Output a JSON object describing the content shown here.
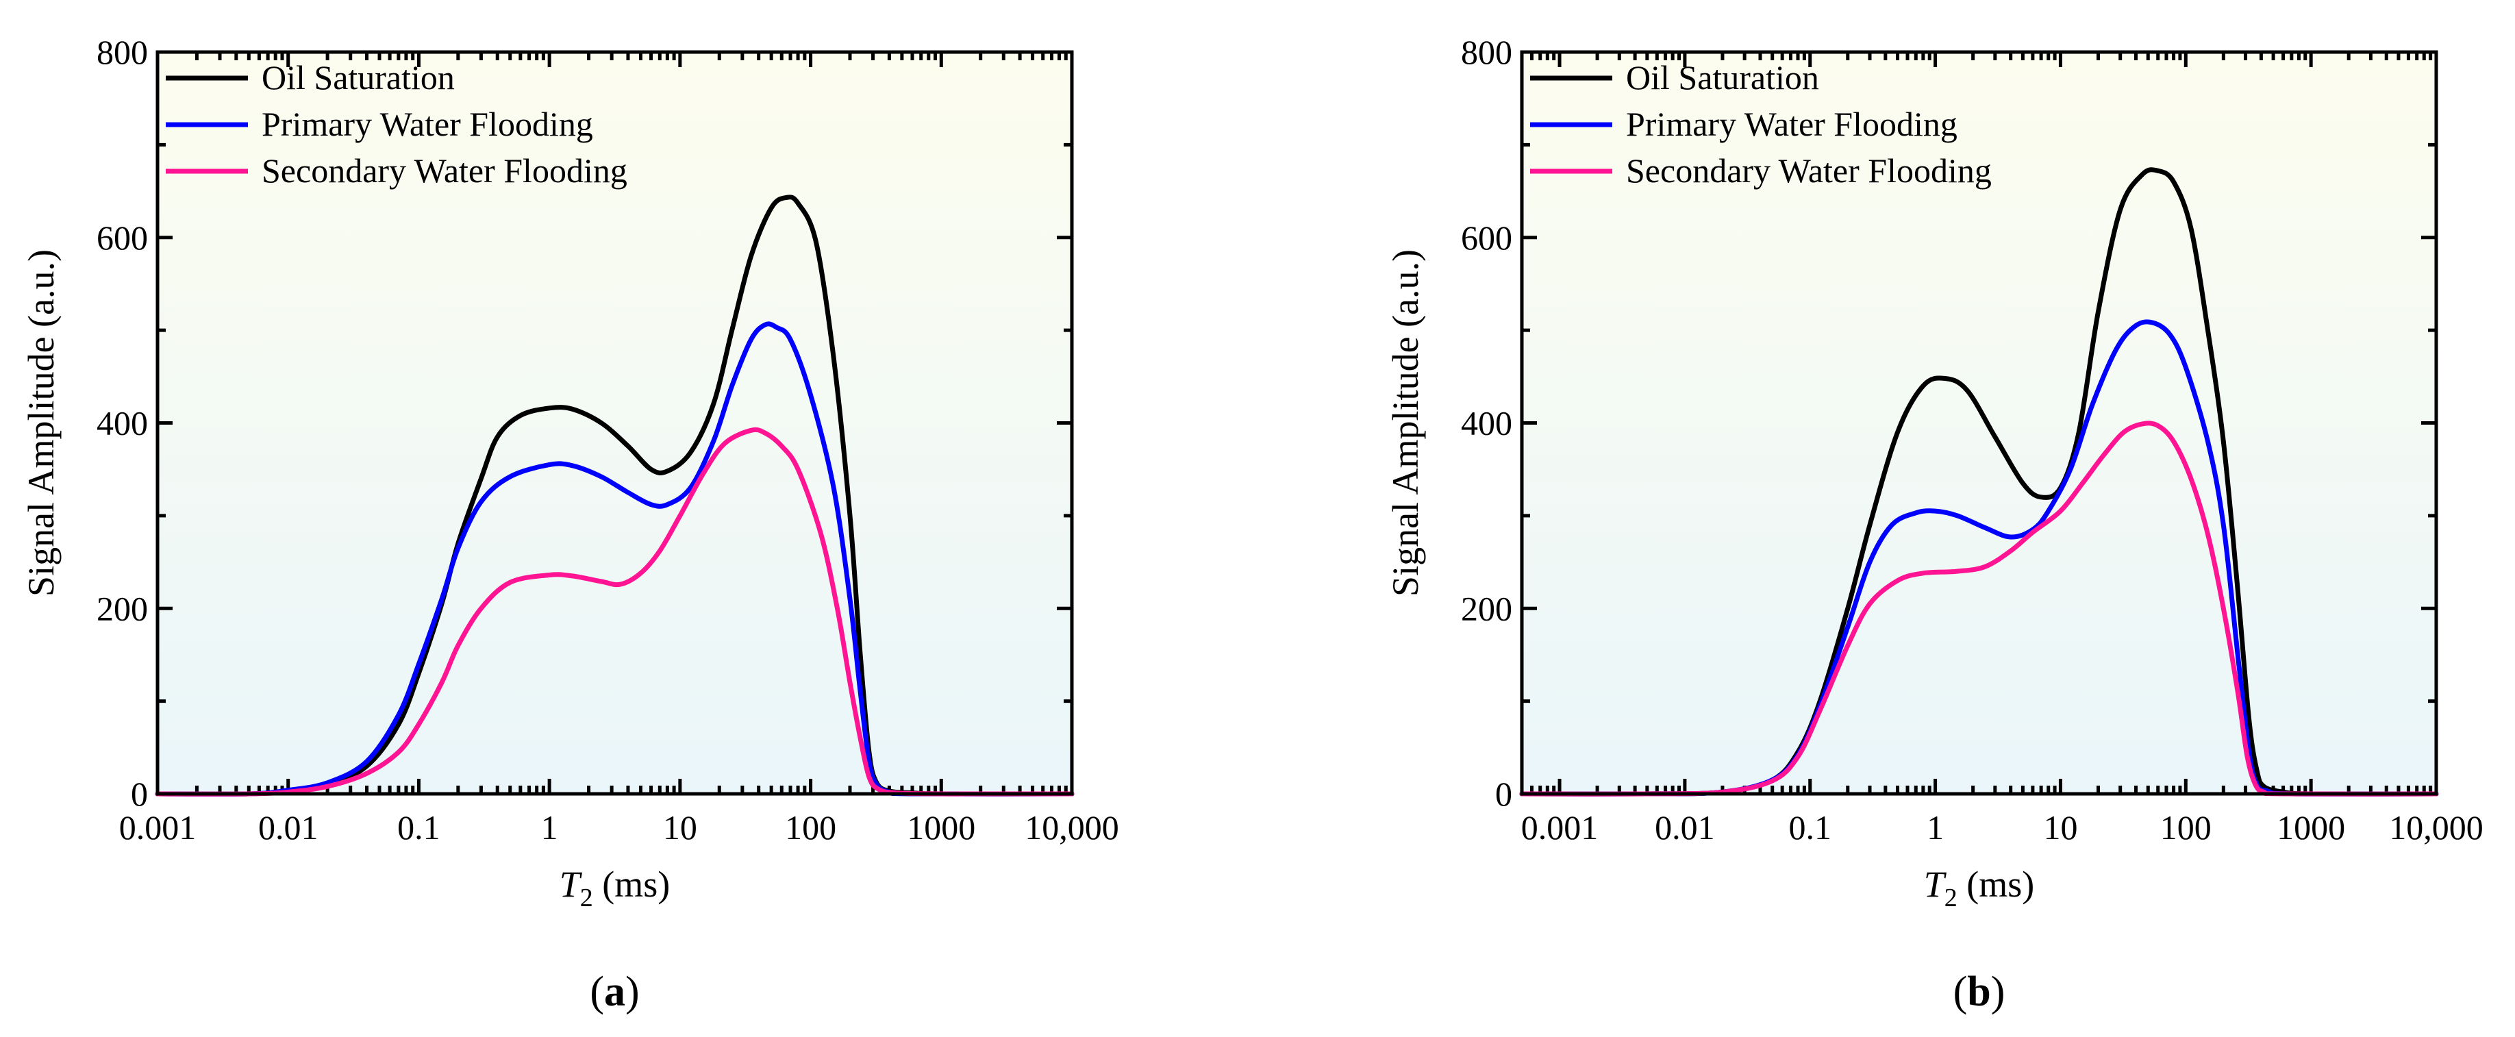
{
  "colors": {
    "oil": "#000000",
    "primary": "#0000ff",
    "secondary": "#ff1493",
    "bg_top": "#fdfdef",
    "bg_bottom": "#eaf6fa"
  },
  "chart_data": [
    {
      "type": "line",
      "panel_label": "a",
      "xlabel_var": "T",
      "xlabel_sub": "2",
      "xlabel_unit": " (ms)",
      "ylabel": "Signal Amplitude (a.u.)",
      "xscale": "log",
      "xlim": [
        0.001,
        10000
      ],
      "ylim": [
        0,
        800
      ],
      "xticks": [
        0.001,
        0.01,
        0.1,
        1,
        10,
        100,
        1000,
        10000
      ],
      "xtick_labels": [
        "0.001",
        "0.01",
        "0.1",
        "1",
        "10",
        "100",
        "1000",
        "10,000"
      ],
      "yticks": [
        0,
        200,
        400,
        600,
        800
      ],
      "ytick_labels": [
        "0",
        "200",
        "400",
        "600",
        "800"
      ],
      "legend_position": "top-left",
      "series": [
        {
          "name": "Oil Saturation",
          "color_key": "oil",
          "points": [
            [
              0.001,
              0
            ],
            [
              0.005,
              0
            ],
            [
              0.01,
              3
            ],
            [
              0.02,
              10
            ],
            [
              0.04,
              30
            ],
            [
              0.07,
              75
            ],
            [
              0.1,
              130
            ],
            [
              0.15,
              205
            ],
            [
              0.2,
              270
            ],
            [
              0.3,
              340
            ],
            [
              0.4,
              385
            ],
            [
              0.6,
              408
            ],
            [
              1,
              416
            ],
            [
              1.5,
              415
            ],
            [
              2.5,
              400
            ],
            [
              4,
              375
            ],
            [
              6,
              350
            ],
            [
              8,
              348
            ],
            [
              12,
              368
            ],
            [
              18,
              420
            ],
            [
              25,
              500
            ],
            [
              35,
              580
            ],
            [
              50,
              632
            ],
            [
              65,
              643
            ],
            [
              80,
              637
            ],
            [
              110,
              595
            ],
            [
              150,
              470
            ],
            [
              200,
              300
            ],
            [
              240,
              150
            ],
            [
              280,
              45
            ],
            [
              320,
              12
            ],
            [
              400,
              3
            ],
            [
              600,
              1
            ],
            [
              1000,
              0
            ],
            [
              10000,
              0
            ]
          ]
        },
        {
          "name": "Primary Water Flooding",
          "color_key": "primary",
          "points": [
            [
              0.001,
              0
            ],
            [
              0.005,
              0
            ],
            [
              0.01,
              4
            ],
            [
              0.02,
              12
            ],
            [
              0.04,
              35
            ],
            [
              0.07,
              85
            ],
            [
              0.1,
              140
            ],
            [
              0.15,
              210
            ],
            [
              0.2,
              265
            ],
            [
              0.3,
              315
            ],
            [
              0.5,
              342
            ],
            [
              1,
              355
            ],
            [
              1.5,
              354
            ],
            [
              2.5,
              342
            ],
            [
              4,
              325
            ],
            [
              6,
              312
            ],
            [
              8,
              312
            ],
            [
              12,
              330
            ],
            [
              18,
              380
            ],
            [
              25,
              440
            ],
            [
              35,
              490
            ],
            [
              45,
              506
            ],
            [
              55,
              503
            ],
            [
              70,
              490
            ],
            [
              100,
              430
            ],
            [
              150,
              330
            ],
            [
              200,
              210
            ],
            [
              240,
              110
            ],
            [
              280,
              35
            ],
            [
              320,
              10
            ],
            [
              400,
              2
            ],
            [
              600,
              0
            ],
            [
              10000,
              0
            ]
          ]
        },
        {
          "name": "Secondary Water Flooding",
          "color_key": "secondary",
          "points": [
            [
              0.001,
              0
            ],
            [
              0.005,
              0
            ],
            [
              0.01,
              2
            ],
            [
              0.02,
              8
            ],
            [
              0.04,
              22
            ],
            [
              0.07,
              45
            ],
            [
              0.1,
              75
            ],
            [
              0.15,
              120
            ],
            [
              0.2,
              160
            ],
            [
              0.3,
              200
            ],
            [
              0.5,
              228
            ],
            [
              1,
              236
            ],
            [
              1.5,
              235
            ],
            [
              2.5,
              229
            ],
            [
              3.5,
              226
            ],
            [
              5,
              238
            ],
            [
              7,
              262
            ],
            [
              10,
              300
            ],
            [
              15,
              345
            ],
            [
              22,
              378
            ],
            [
              35,
              392
            ],
            [
              45,
              389
            ],
            [
              60,
              375
            ],
            [
              80,
              350
            ],
            [
              120,
              280
            ],
            [
              160,
              200
            ],
            [
              200,
              120
            ],
            [
              240,
              60
            ],
            [
              280,
              18
            ],
            [
              330,
              5
            ],
            [
              450,
              1
            ],
            [
              1000,
              0
            ],
            [
              2000,
              0
            ],
            [
              10000,
              0
            ]
          ]
        }
      ]
    },
    {
      "type": "line",
      "panel_label": "b",
      "xlabel_var": "T",
      "xlabel_sub": "2",
      "xlabel_unit": " (ms)",
      "ylabel": "Signal Amplitude (a.u.)",
      "xscale": "log",
      "xlim": [
        0.0005,
        10000
      ],
      "ylim": [
        0,
        800
      ],
      "xticks": [
        0.001,
        0.01,
        0.1,
        1,
        10,
        100,
        1000,
        10000
      ],
      "xtick_labels": [
        "0.001",
        "0.01",
        "0.1",
        "1",
        "10",
        "100",
        "1000",
        "10,000"
      ],
      "yticks": [
        0,
        200,
        400,
        600,
        800
      ],
      "ytick_labels": [
        "0",
        "200",
        "400",
        "600",
        "800"
      ],
      "legend_position": "top-left",
      "series": [
        {
          "name": "Oil Saturation",
          "color_key": "oil",
          "points": [
            [
              0.0005,
              0
            ],
            [
              0.005,
              0
            ],
            [
              0.02,
              2
            ],
            [
              0.05,
              15
            ],
            [
              0.08,
              45
            ],
            [
              0.12,
              100
            ],
            [
              0.2,
              200
            ],
            [
              0.3,
              290
            ],
            [
              0.5,
              390
            ],
            [
              0.8,
              440
            ],
            [
              1.2,
              448
            ],
            [
              1.8,
              435
            ],
            [
              3,
              385
            ],
            [
              5,
              335
            ],
            [
              7,
              320
            ],
            [
              10,
              330
            ],
            [
              14,
              390
            ],
            [
              20,
              520
            ],
            [
              30,
              630
            ],
            [
              45,
              668
            ],
            [
              60,
              672
            ],
            [
              80,
              660
            ],
            [
              110,
              610
            ],
            [
              150,
              500
            ],
            [
              200,
              380
            ],
            [
              260,
              220
            ],
            [
              320,
              80
            ],
            [
              370,
              25
            ],
            [
              420,
              8
            ],
            [
              600,
              2
            ],
            [
              1000,
              0
            ],
            [
              10000,
              0
            ]
          ]
        },
        {
          "name": "Primary Water Flooding",
          "color_key": "primary",
          "points": [
            [
              0.0005,
              0
            ],
            [
              0.005,
              0
            ],
            [
              0.02,
              2
            ],
            [
              0.05,
              15
            ],
            [
              0.08,
              42
            ],
            [
              0.12,
              95
            ],
            [
              0.2,
              180
            ],
            [
              0.3,
              250
            ],
            [
              0.45,
              290
            ],
            [
              0.7,
              303
            ],
            [
              1,
              305
            ],
            [
              1.5,
              300
            ],
            [
              2.5,
              287
            ],
            [
              4,
              277
            ],
            [
              6,
              285
            ],
            [
              8,
              305
            ],
            [
              12,
              350
            ],
            [
              18,
              420
            ],
            [
              28,
              480
            ],
            [
              40,
              505
            ],
            [
              55,
              508
            ],
            [
              75,
              495
            ],
            [
              100,
              460
            ],
            [
              150,
              380
            ],
            [
              200,
              290
            ],
            [
              260,
              150
            ],
            [
              320,
              45
            ],
            [
              370,
              10
            ],
            [
              450,
              3
            ],
            [
              700,
              0
            ],
            [
              10000,
              0
            ]
          ]
        },
        {
          "name": "Secondary Water Flooding",
          "color_key": "secondary",
          "points": [
            [
              0.0005,
              0
            ],
            [
              0.005,
              0
            ],
            [
              0.02,
              2
            ],
            [
              0.05,
              14
            ],
            [
              0.08,
              40
            ],
            [
              0.12,
              90
            ],
            [
              0.2,
              160
            ],
            [
              0.3,
              205
            ],
            [
              0.5,
              230
            ],
            [
              0.8,
              238
            ],
            [
              1.5,
              240
            ],
            [
              2.5,
              245
            ],
            [
              4,
              262
            ],
            [
              6,
              282
            ],
            [
              10,
              305
            ],
            [
              15,
              335
            ],
            [
              22,
              365
            ],
            [
              32,
              390
            ],
            [
              45,
              399
            ],
            [
              60,
              397
            ],
            [
              80,
              380
            ],
            [
              110,
              340
            ],
            [
              150,
              280
            ],
            [
              200,
              200
            ],
            [
              260,
              110
            ],
            [
              310,
              40
            ],
            [
              360,
              10
            ],
            [
              420,
              2
            ],
            [
              600,
              0
            ],
            [
              10000,
              0
            ]
          ]
        }
      ]
    }
  ]
}
